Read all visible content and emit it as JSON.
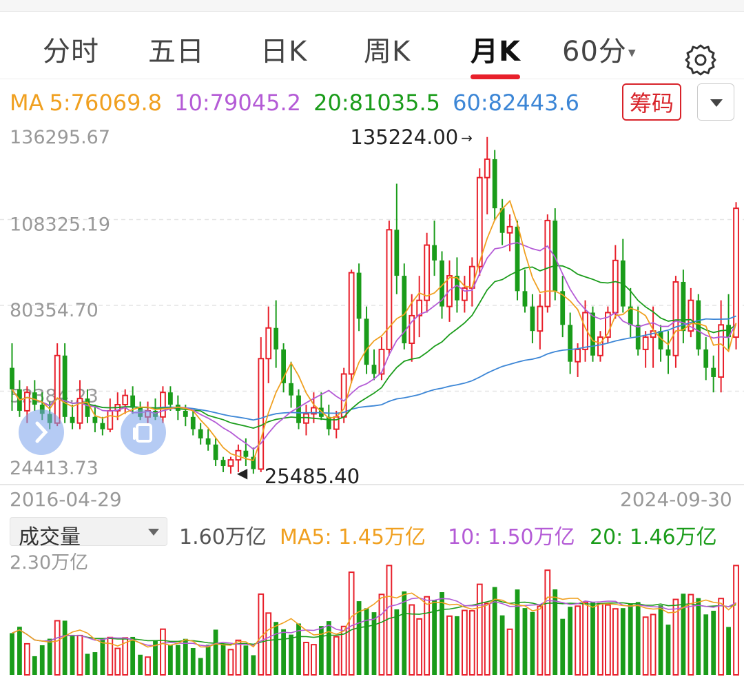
{
  "tabs": [
    {
      "label": "分时"
    },
    {
      "label": "五日"
    },
    {
      "label": "日K"
    },
    {
      "label": "周K"
    },
    {
      "label": "月K"
    },
    {
      "label": "60分"
    }
  ],
  "active_tab": "月K",
  "icons": {
    "settings": "gear-icon",
    "dropdown": "triangle-down-icon",
    "float_left": "chevron-right-icon",
    "float_right": "copy-icon"
  },
  "ma": {
    "prefix": "MA",
    "ma5": "5:76069.8",
    "ma10": "10:79045.2",
    "ma20": "20:81035.5",
    "ma60": "60:82443.6"
  },
  "chips_button": "筹码",
  "price_axis": {
    "labels": [
      "136295.67",
      "108325.19",
      "80354.70",
      "52384.23",
      "24413.73"
    ],
    "max_label": "135224.00",
    "min_label": "25485.40",
    "max": 136295.67,
    "min": 24413.73
  },
  "dates": {
    "start": "2016-04-29",
    "end": "2024-09-30"
  },
  "volume": {
    "selector": "成交量",
    "current": "1.60万亿",
    "ma5": "MA5: 1.45万亿",
    "ma10": "10: 1.50万亿",
    "ma20": "20: 1.46万亿",
    "axis_max": "2.30万亿",
    "max_value": 2.3
  },
  "colors": {
    "up": "#e8202b",
    "down": "#1a9c1a",
    "ma5": "#f0a020",
    "ma10": "#b45bd6",
    "ma20": "#1a9c1a",
    "ma60": "#3c86d6",
    "accent": "#e8202b"
  },
  "chart_data": {
    "type": "candlestick",
    "x_range": [
      "2016-04-29",
      "2024-09-30"
    ],
    "ylim": [
      24413.73,
      136295.67
    ],
    "candles_ohlc": [
      [
        60000,
        68000,
        46000,
        53000
      ],
      [
        53000,
        56000,
        44000,
        46000
      ],
      [
        46000,
        54000,
        42000,
        52000
      ],
      [
        52000,
        56000,
        46000,
        48000
      ],
      [
        48000,
        52000,
        43000,
        45000
      ],
      [
        45000,
        49000,
        40000,
        42000
      ],
      [
        42000,
        68000,
        41000,
        64000
      ],
      [
        64000,
        68000,
        42000,
        44000
      ],
      [
        44000,
        48000,
        40000,
        42000
      ],
      [
        42000,
        56000,
        40000,
        50000
      ],
      [
        50000,
        53000,
        42000,
        44000
      ],
      [
        44000,
        48000,
        39000,
        42000
      ],
      [
        42000,
        44000,
        38000,
        40000
      ],
      [
        40000,
        50000,
        39000,
        46000
      ],
      [
        46000,
        52000,
        43000,
        48000
      ],
      [
        48000,
        53000,
        45000,
        51000
      ],
      [
        51000,
        54000,
        45000,
        47000
      ],
      [
        47000,
        49000,
        43000,
        44000
      ],
      [
        44000,
        49000,
        42000,
        46000
      ],
      [
        46000,
        50000,
        43000,
        44000
      ],
      [
        44000,
        54000,
        42000,
        52000
      ],
      [
        52000,
        54000,
        46000,
        48000
      ],
      [
        48000,
        51000,
        43000,
        46000
      ],
      [
        46000,
        48000,
        41000,
        44000
      ],
      [
        44000,
        46000,
        38000,
        40000
      ],
      [
        40000,
        42000,
        35000,
        37000
      ],
      [
        37000,
        40000,
        33000,
        35000
      ],
      [
        35000,
        37000,
        28000,
        30000
      ],
      [
        30000,
        31000,
        26000,
        28000
      ],
      [
        28000,
        31000,
        25500,
        30000
      ],
      [
        30000,
        35000,
        26000,
        33000
      ],
      [
        33000,
        37000,
        28000,
        31000
      ],
      [
        31000,
        34000,
        25485,
        27000
      ],
      [
        27000,
        70000,
        26000,
        63000
      ],
      [
        63000,
        80000,
        55000,
        73000
      ],
      [
        73000,
        82000,
        60000,
        66000
      ],
      [
        66000,
        68000,
        52000,
        55000
      ],
      [
        55000,
        62000,
        47000,
        51000
      ],
      [
        51000,
        53000,
        40000,
        42000
      ],
      [
        42000,
        48000,
        38000,
        45000
      ],
      [
        45000,
        52000,
        42000,
        47000
      ],
      [
        47000,
        52000,
        43000,
        44000
      ],
      [
        44000,
        48000,
        38000,
        40000
      ],
      [
        40000,
        46000,
        37000,
        44000
      ],
      [
        44000,
        60000,
        42000,
        58000
      ],
      [
        58000,
        92000,
        55000,
        91000
      ],
      [
        91000,
        94000,
        72000,
        76000
      ],
      [
        76000,
        80000,
        58000,
        61000
      ],
      [
        61000,
        66000,
        56000,
        58000
      ],
      [
        58000,
        70000,
        56000,
        66000
      ],
      [
        66000,
        108000,
        64000,
        105000
      ],
      [
        105000,
        120000,
        84000,
        90000
      ],
      [
        90000,
        94000,
        66000,
        68000
      ],
      [
        68000,
        84000,
        62000,
        77000
      ],
      [
        77000,
        90000,
        70000,
        82000
      ],
      [
        82000,
        104000,
        78000,
        100000
      ],
      [
        100000,
        108000,
        90000,
        95000
      ],
      [
        95000,
        98000,
        76000,
        80000
      ],
      [
        80000,
        95000,
        75000,
        90000
      ],
      [
        90000,
        96000,
        78000,
        82000
      ],
      [
        82000,
        90000,
        78000,
        86000
      ],
      [
        86000,
        96000,
        80000,
        93000
      ],
      [
        93000,
        125000,
        90000,
        122000
      ],
      [
        122000,
        135224,
        110000,
        128000
      ],
      [
        128000,
        131000,
        108000,
        112000
      ],
      [
        112000,
        115000,
        100000,
        104000
      ],
      [
        104000,
        110000,
        98000,
        106000
      ],
      [
        106000,
        108000,
        82000,
        85000
      ],
      [
        85000,
        92000,
        78000,
        80000
      ],
      [
        80000,
        84000,
        68000,
        72000
      ],
      [
        72000,
        84000,
        66000,
        80000
      ],
      [
        80000,
        110000,
        78000,
        108000
      ],
      [
        108000,
        112000,
        82000,
        85000
      ],
      [
        85000,
        90000,
        70000,
        74000
      ],
      [
        74000,
        78000,
        58000,
        62000
      ],
      [
        62000,
        68000,
        57000,
        66000
      ],
      [
        66000,
        82000,
        62000,
        78000
      ],
      [
        78000,
        80000,
        62000,
        64000
      ],
      [
        64000,
        72000,
        62000,
        70000
      ],
      [
        70000,
        80000,
        68000,
        78000
      ],
      [
        78000,
        100000,
        76000,
        95000
      ],
      [
        95000,
        102000,
        78000,
        80000
      ],
      [
        80000,
        86000,
        70000,
        74000
      ],
      [
        74000,
        80000,
        64000,
        66000
      ],
      [
        66000,
        72000,
        60000,
        70000
      ],
      [
        70000,
        80000,
        60000,
        72000
      ],
      [
        72000,
        74000,
        62000,
        66000
      ],
      [
        66000,
        72000,
        58000,
        64000
      ],
      [
        64000,
        90000,
        60000,
        88000
      ],
      [
        88000,
        92000,
        68000,
        72000
      ],
      [
        72000,
        86000,
        70000,
        82000
      ],
      [
        82000,
        84000,
        64000,
        66000
      ],
      [
        66000,
        70000,
        56000,
        60000
      ],
      [
        60000,
        64000,
        52000,
        57000
      ],
      [
        57000,
        82000,
        52000,
        74000
      ],
      [
        74000,
        84000,
        66000,
        70000
      ],
      [
        70000,
        114000,
        66000,
        112000
      ]
    ],
    "annotations": [
      {
        "text": "135224.00",
        "value": 135224.0
      },
      {
        "text": "25485.40",
        "value": 25485.4
      }
    ],
    "volume_unit": "万亿",
    "volume_ylim": [
      0,
      2.3
    ]
  }
}
